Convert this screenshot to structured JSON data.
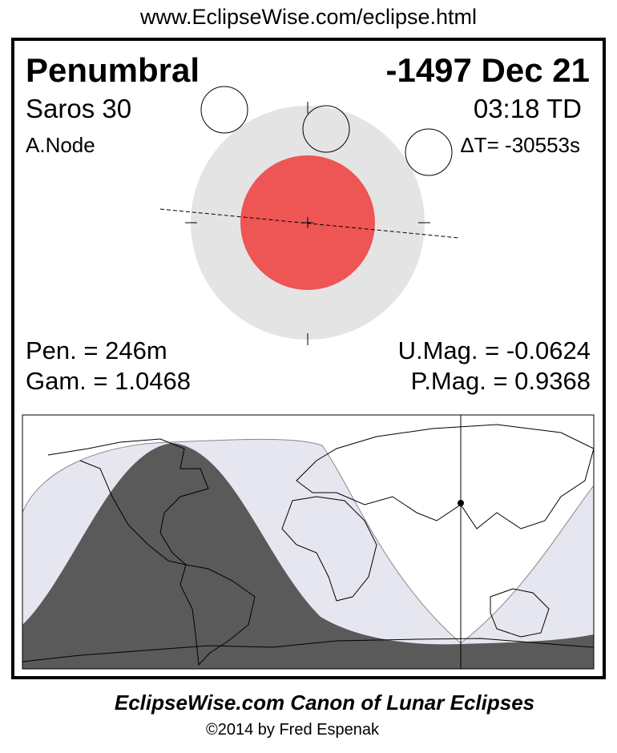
{
  "header_url": "www.EclipseWise.com/eclipse.html",
  "eclipse": {
    "type": "Penumbral",
    "date": "-1497 Dec 21",
    "saros": "Saros  30",
    "time": "03:18 TD",
    "node": "A.Node",
    "delta_t": "ΔT= -30553s"
  },
  "stats": {
    "pen": "Pen. = 246m",
    "gam": "Gam. = 1.0468",
    "umag": "U.Mag. = -0.0624",
    "pmag": "P.Mag. = 0.9368"
  },
  "colors": {
    "penumbra": "#e4e4e4",
    "umbra": "#ee5555",
    "night": "#5a5a5a",
    "penumbral_zone": "#e6e6f0",
    "day": "#ffffff"
  },
  "footer": {
    "title": "EclipseWise.com Canon of Lunar Eclipses",
    "copyright": "©2014 by Fred Espenak"
  }
}
